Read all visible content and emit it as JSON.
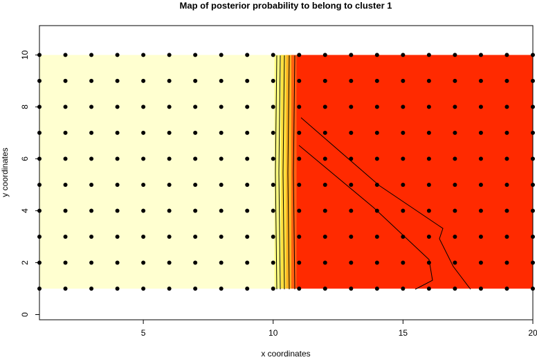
{
  "chart_data": {
    "type": "heatmap-scatter",
    "title": "Map of posterior probability to belong to cluster  1",
    "x_label": "x coordinates",
    "y_label": "y coordinates",
    "xlim": [
      1,
      20
    ],
    "ylim": [
      -0.2,
      11.13
    ],
    "xticks": [
      5,
      10,
      15,
      20
    ],
    "yticks": [
      0,
      2,
      4,
      6,
      8,
      10
    ],
    "heat_bins": [
      1,
      10.05,
      10.3,
      10.5,
      10.7,
      10.9,
      20
    ],
    "heat_values": [
      0,
      0.2,
      0.4,
      0.6,
      0.8,
      1
    ],
    "heat_colors": [
      "#ffffd0",
      "#ffff80",
      "#ffe040",
      "#ffb020",
      "#ff6010",
      "#ff2a00"
    ],
    "heat_ylim": [
      1,
      10
    ],
    "points_x": [
      1,
      2,
      3,
      4,
      5,
      6,
      7,
      8,
      9,
      10,
      11,
      12,
      13,
      14,
      15,
      16,
      17,
      18,
      19,
      20
    ],
    "points_y": [
      1,
      2,
      3,
      4,
      5,
      6,
      7,
      8,
      9,
      10
    ],
    "point_color": "#000000"
  }
}
